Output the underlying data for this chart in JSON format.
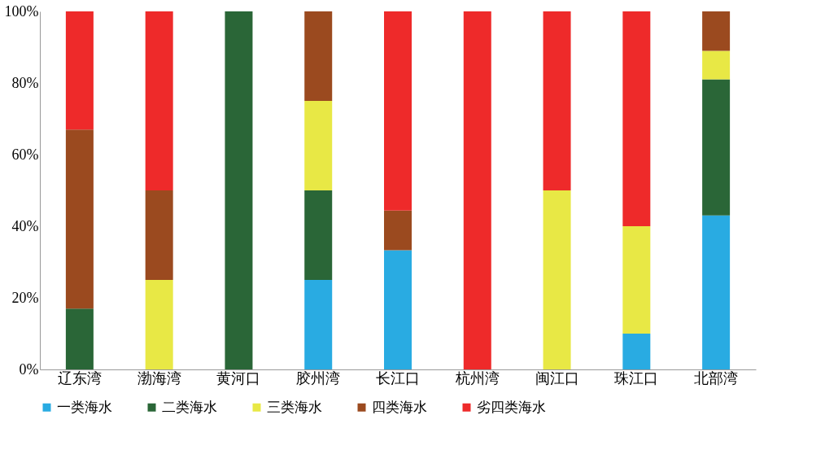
{
  "chart_data": {
    "type": "bar",
    "stacked": true,
    "categories": [
      "辽东湾",
      "渤海湾",
      "黄河口",
      "胶州湾",
      "长江口",
      "杭州湾",
      "闽江口",
      "珠江口",
      "北部湾"
    ],
    "series": [
      {
        "name": "一类海水",
        "color": "#29abe2",
        "values": [
          0,
          0,
          0,
          25,
          33.3,
          0,
          0,
          10,
          43
        ]
      },
      {
        "name": "二类海水",
        "color": "#2a6637",
        "values": [
          17,
          0,
          100,
          25,
          0,
          0,
          0,
          0,
          38
        ]
      },
      {
        "name": "三类海水",
        "color": "#e8e845",
        "values": [
          0,
          25,
          0,
          25,
          0,
          0,
          50,
          30,
          8
        ]
      },
      {
        "name": "四类海水",
        "color": "#9b4a1f",
        "values": [
          50,
          25,
          0,
          25,
          11.1,
          0,
          0,
          0,
          11
        ]
      },
      {
        "name": "劣四类海水",
        "color": "#ee2a2a",
        "values": [
          33,
          50,
          0,
          0,
          55.6,
          100,
          50,
          60,
          0
        ]
      }
    ],
    "ylim": [
      0,
      100
    ],
    "yticks": [
      {
        "value": 0,
        "label": "0%"
      },
      {
        "value": 20,
        "label": "20%"
      },
      {
        "value": 40,
        "label": "40%"
      },
      {
        "value": 60,
        "label": "60%"
      },
      {
        "value": 80,
        "label": "80%"
      },
      {
        "value": 100,
        "label": "100%"
      }
    ],
    "grid": false,
    "legend": "bottom"
  }
}
